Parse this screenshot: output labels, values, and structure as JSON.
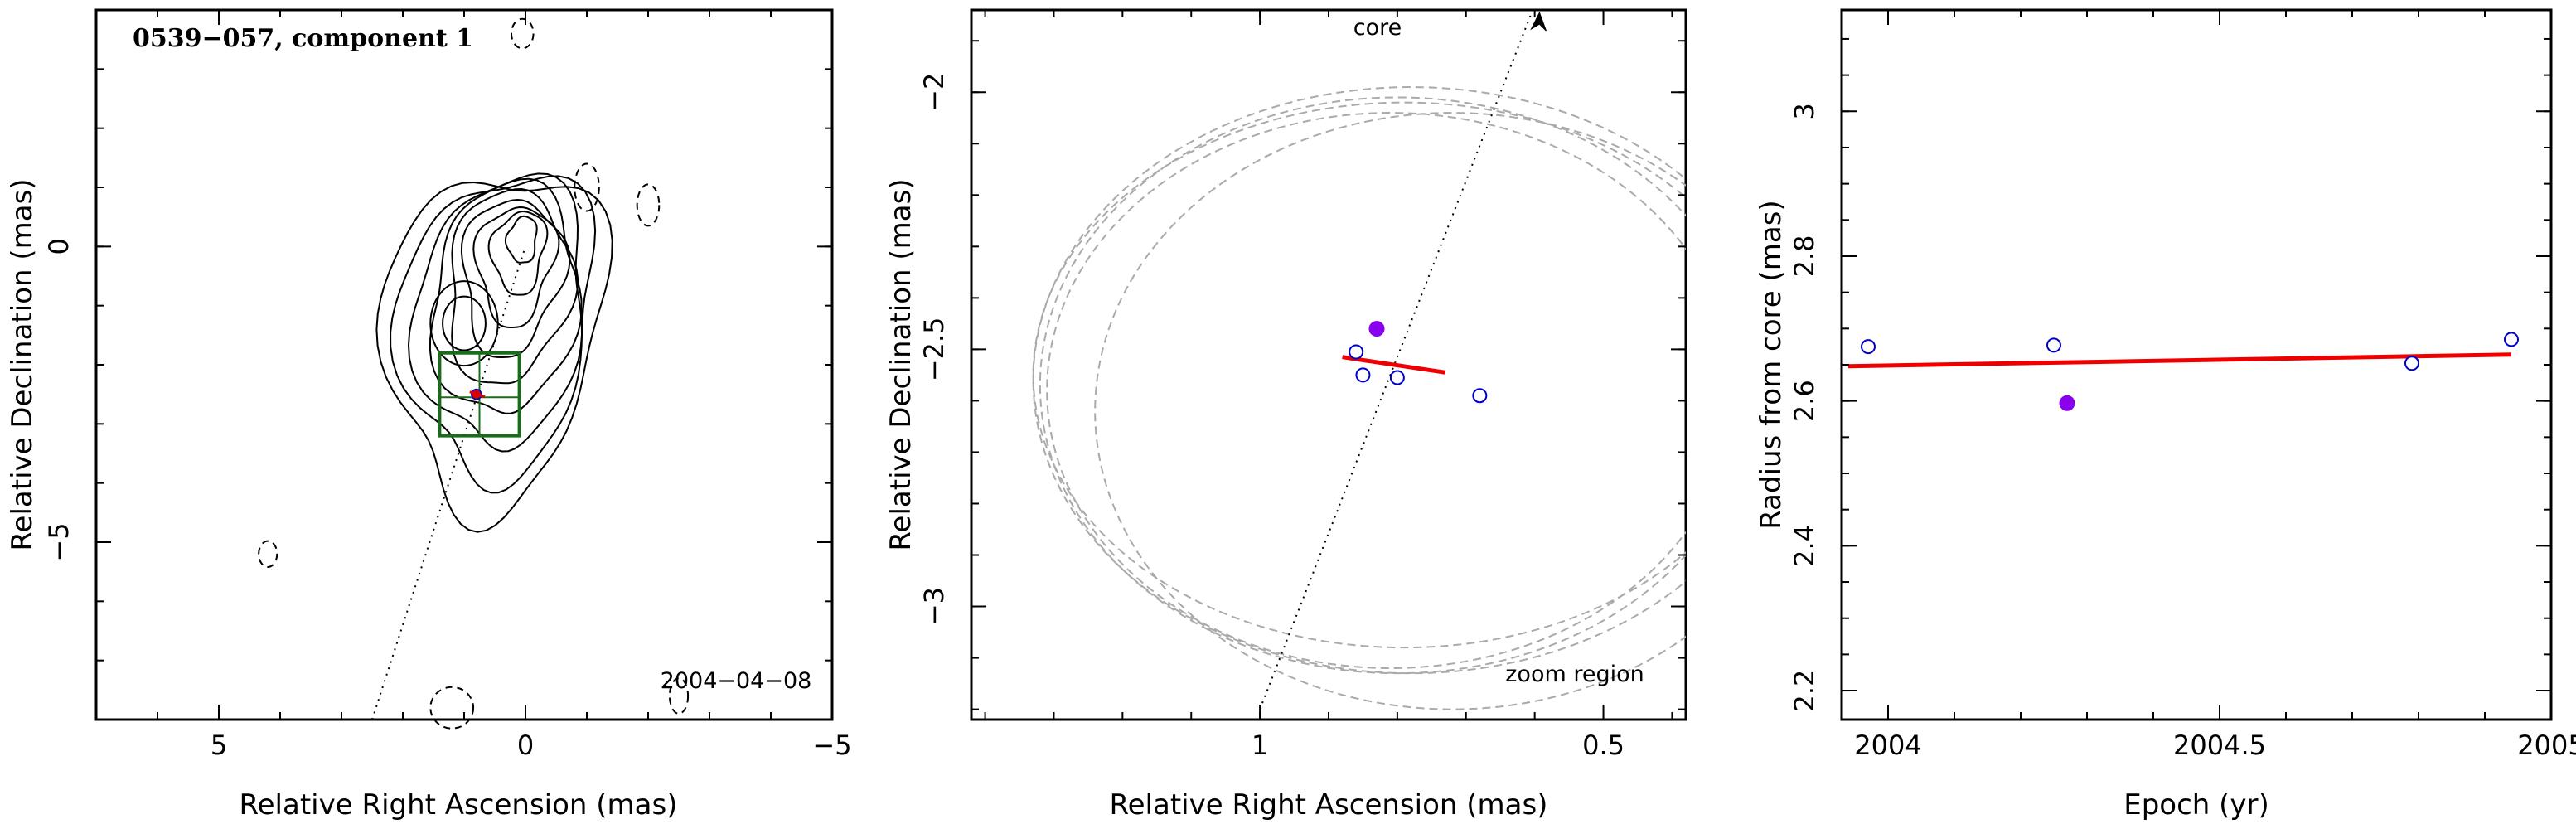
{
  "chart_data": [
    {
      "type": "contour",
      "panel": "left",
      "title": "0539−057, component 1",
      "annotation": "2004−04−08",
      "xlabel": "Relative Right Ascension (mas)",
      "ylabel": "Relative Declination (mas)",
      "xlim": [
        7.0,
        -5.0
      ],
      "ylim": [
        -8.0,
        4.0
      ],
      "xticks": [
        5,
        0,
        -5
      ],
      "xtick_labels": [
        "5",
        "0",
        "−5"
      ],
      "yticks": [
        0,
        -5
      ],
      "ytick_labels": [
        "0",
        "−5"
      ],
      "peak_centers": [
        [
          0.0,
          0.0
        ],
        [
          1.0,
          -1.3
        ]
      ],
      "component_position": [
        0.8,
        -2.5
      ],
      "jet_direction_line": [
        [
          2.5,
          -8.0
        ],
        [
          0.0,
          0.0
        ]
      ],
      "zoom_box": {
        "x": [
          1.4,
          0.1
        ],
        "y": [
          -1.8,
          -3.2
        ]
      },
      "colors": {
        "contour": "#000000",
        "box": "#1a6b1a",
        "marker": "#dd0000"
      }
    },
    {
      "type": "scatter",
      "panel": "middle",
      "xlabel": "Relative Right Ascension (mas)",
      "ylabel": "Relative Declination (mas)",
      "annotations": [
        "core",
        "zoom region"
      ],
      "xlim": [
        1.42,
        0.38
      ],
      "ylim": [
        -3.22,
        -1.84
      ],
      "xticks": [
        1,
        0.5
      ],
      "xtick_labels": [
        "1",
        "0.5"
      ],
      "yticks": [
        -2,
        -2.5,
        -3
      ],
      "ytick_labels": [
        "−2",
        "−2.5",
        "−3"
      ],
      "open_points": [
        {
          "x": 0.86,
          "y": -2.505
        },
        {
          "x": 0.85,
          "y": -2.55
        },
        {
          "x": 0.8,
          "y": -2.555
        },
        {
          "x": 0.68,
          "y": -2.59
        }
      ],
      "filled_points": [
        {
          "x": 0.83,
          "y": -2.46
        }
      ],
      "fit_line": [
        [
          0.88,
          -2.515
        ],
        [
          0.73,
          -2.545
        ]
      ],
      "core_direction_line": [
        [
          1.0,
          -3.2
        ],
        [
          0.6,
          -1.83
        ]
      ],
      "beam_ellipses": [
        {
          "cx": 0.8,
          "cy": -2.57,
          "rx": 0.52,
          "ry": 0.56
        },
        {
          "cx": 0.79,
          "cy": -2.55,
          "rx": 0.54,
          "ry": 0.53
        },
        {
          "cx": 0.81,
          "cy": -2.58,
          "rx": 0.5,
          "ry": 0.54
        },
        {
          "cx": 0.78,
          "cy": -2.56,
          "rx": 0.55,
          "ry": 0.57
        },
        {
          "cx": 0.72,
          "cy": -2.62,
          "rx": 0.52,
          "ry": 0.58
        }
      ],
      "colors": {
        "points": "#0000cc",
        "filled": "#8800ee",
        "fit": "#ee0000",
        "beams": "#aaaaaa"
      }
    },
    {
      "type": "scatter",
      "panel": "right",
      "xlabel": "Epoch (yr)",
      "ylabel": "Radius from core (mas)",
      "xlim": [
        2003.93,
        2005.0
      ],
      "ylim": [
        2.16,
        3.14
      ],
      "xticks": [
        2004,
        2004.5,
        2005
      ],
      "xtick_labels": [
        "2004",
        "2004.5",
        "2005"
      ],
      "yticks": [
        2.2,
        2.4,
        2.6,
        2.8,
        3
      ],
      "ytick_labels": [
        "2.2",
        "2.4",
        "2.6",
        "2.8",
        "3"
      ],
      "open_points": [
        {
          "x": 2003.97,
          "y": 2.675
        },
        {
          "x": 2004.25,
          "y": 2.677
        },
        {
          "x": 2004.79,
          "y": 2.652
        },
        {
          "x": 2004.94,
          "y": 2.685
        }
      ],
      "filled_points": [
        {
          "x": 2004.27,
          "y": 2.597
        }
      ],
      "fit_line": [
        [
          2003.94,
          2.648
        ],
        [
          2004.94,
          2.664
        ]
      ],
      "colors": {
        "points": "#0000cc",
        "filled": "#8800ee",
        "fit": "#ee0000"
      }
    }
  ]
}
